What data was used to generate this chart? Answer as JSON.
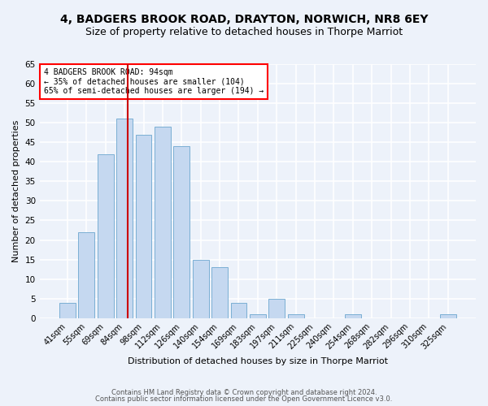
{
  "title": "4, BADGERS BROOK ROAD, DRAYTON, NORWICH, NR8 6EY",
  "subtitle": "Size of property relative to detached houses in Thorpe Marriot",
  "xlabel": "Distribution of detached houses by size in Thorpe Marriot",
  "ylabel": "Number of detached properties",
  "bar_labels": [
    "41sqm",
    "55sqm",
    "69sqm",
    "84sqm",
    "98sqm",
    "112sqm",
    "126sqm",
    "140sqm",
    "154sqm",
    "169sqm",
    "183sqm",
    "197sqm",
    "211sqm",
    "225sqm",
    "240sqm",
    "254sqm",
    "268sqm",
    "282sqm",
    "296sqm",
    "310sqm",
    "325sqm"
  ],
  "bar_values": [
    4,
    22,
    42,
    51,
    47,
    49,
    44,
    15,
    13,
    4,
    1,
    5,
    1,
    0,
    0,
    1,
    0,
    0,
    0,
    0,
    1
  ],
  "bar_color": "#c5d8f0",
  "bar_edge_color": "#7bafd4",
  "bg_color": "#edf2fa",
  "grid_color": "#ffffff",
  "annotation_text": "4 BADGERS BROOK ROAD: 94sqm\n← 35% of detached houses are smaller (104)\n65% of semi-detached houses are larger (194) →",
  "vline_color": "#cc0000",
  "ylim": [
    0,
    65
  ],
  "yticks": [
    0,
    5,
    10,
    15,
    20,
    25,
    30,
    35,
    40,
    45,
    50,
    55,
    60,
    65
  ],
  "footer1": "Contains HM Land Registry data © Crown copyright and database right 2024.",
  "footer2": "Contains public sector information licensed under the Open Government Licence v3.0.",
  "title_fontsize": 10,
  "subtitle_fontsize": 9
}
